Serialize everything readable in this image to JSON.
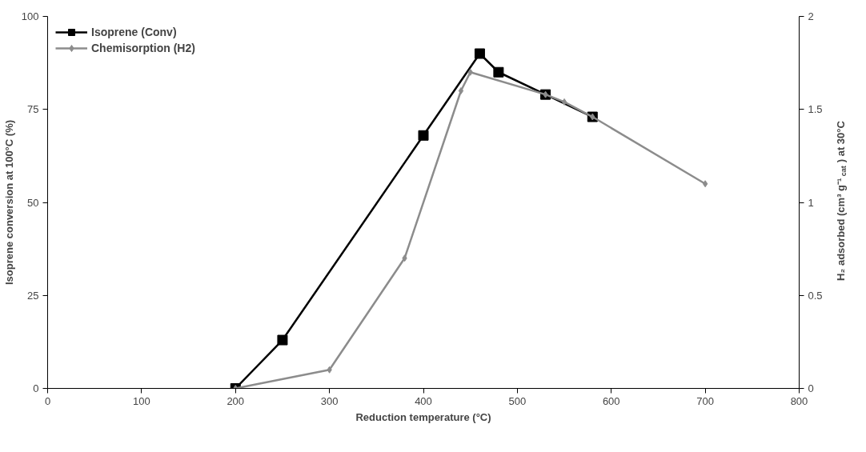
{
  "chart_data": {
    "type": "line",
    "xlabel": "Reduction temperature (°C)",
    "ylabel": "Isoprene conversion at 100°C (%)",
    "y2label": "H₂ adsorbed (cm³ g⁻¹$_{cat}$) at 30°C",
    "xlim": [
      0,
      800
    ],
    "xticks": [
      0,
      100,
      200,
      300,
      400,
      500,
      600,
      700,
      800
    ],
    "ylim": [
      0,
      100
    ],
    "yticks": [
      0,
      25,
      50,
      75,
      100
    ],
    "y2lim": [
      0,
      2
    ],
    "y2ticks": [
      0,
      0.5,
      1,
      1.5,
      2
    ],
    "grid": false,
    "legend": "top left",
    "series": [
      {
        "name": "Isoprene (Conv)",
        "color": "#000000",
        "marker": "square",
        "x": [
          200,
          250,
          400,
          460,
          480,
          530,
          580
        ],
        "values": [
          0,
          13,
          68,
          90,
          85,
          79,
          73
        ]
      },
      {
        "name": "Chemisorption (H2)",
        "color": "#8c8c8c",
        "marker": "diamond",
        "axis": "y2",
        "x": [
          200,
          300,
          380,
          440,
          450,
          530,
          550,
          580,
          700
        ],
        "values": [
          0,
          0.1,
          0.7,
          1.6,
          1.7,
          1.58,
          1.54,
          1.46,
          1.1
        ]
      }
    ]
  }
}
